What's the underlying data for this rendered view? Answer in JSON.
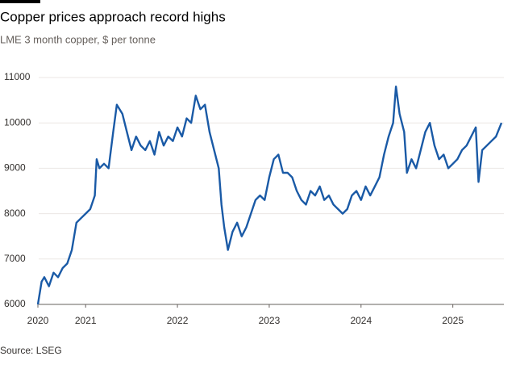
{
  "chart_data": {
    "type": "line",
    "title": "Copper prices approach record highs",
    "subtitle": "LME 3 month copper, $ per tonne",
    "source": "Source: LSEG",
    "x": [
      2020.48,
      2020.52,
      2020.55,
      2020.6,
      2020.65,
      2020.7,
      2020.75,
      2020.8,
      2020.85,
      2020.9,
      2020.95,
      2021.0,
      2021.05,
      2021.1,
      2021.12,
      2021.15,
      2021.2,
      2021.25,
      2021.3,
      2021.34,
      2021.4,
      2021.45,
      2021.5,
      2021.55,
      2021.6,
      2021.65,
      2021.7,
      2021.75,
      2021.8,
      2021.85,
      2021.9,
      2021.95,
      2022.0,
      2022.05,
      2022.1,
      2022.15,
      2022.2,
      2022.25,
      2022.3,
      2022.35,
      2022.4,
      2022.45,
      2022.48,
      2022.51,
      2022.55,
      2022.6,
      2022.65,
      2022.7,
      2022.75,
      2022.8,
      2022.85,
      2022.9,
      2022.95,
      2023.0,
      2023.05,
      2023.1,
      2023.15,
      2023.2,
      2023.25,
      2023.3,
      2023.35,
      2023.4,
      2023.45,
      2023.5,
      2023.55,
      2023.6,
      2023.65,
      2023.7,
      2023.75,
      2023.8,
      2023.85,
      2023.9,
      2023.95,
      2024.0,
      2024.05,
      2024.1,
      2024.15,
      2024.2,
      2024.25,
      2024.3,
      2024.35,
      2024.38,
      2024.42,
      2024.47,
      2024.5,
      2024.55,
      2024.6,
      2024.65,
      2024.7,
      2024.75,
      2024.8,
      2024.85,
      2024.9,
      2024.95,
      2025.0,
      2025.05,
      2025.1,
      2025.15,
      2025.2,
      2025.25,
      2025.28,
      2025.32,
      2025.37,
      2025.42,
      2025.47,
      2025.53
    ],
    "series": [
      {
        "name": "LME 3 month copper",
        "color": "#1a5aa6",
        "values": [
          6000,
          6500,
          6600,
          6400,
          6700,
          6600,
          6800,
          6900,
          7200,
          7800,
          7900,
          8000,
          8100,
          8400,
          9200,
          9000,
          9100,
          9000,
          9800,
          10400,
          10200,
          9800,
          9400,
          9700,
          9500,
          9400,
          9600,
          9300,
          9800,
          9500,
          9700,
          9600,
          9900,
          9700,
          10100,
          10000,
          10600,
          10300,
          10400,
          9800,
          9400,
          9000,
          8200,
          7700,
          7200,
          7600,
          7800,
          7500,
          7700,
          8000,
          8300,
          8400,
          8300,
          8800,
          9200,
          9300,
          8900,
          8900,
          8800,
          8500,
          8300,
          8200,
          8500,
          8400,
          8600,
          8300,
          8400,
          8200,
          8100,
          8000,
          8100,
          8400,
          8500,
          8300,
          8600,
          8400,
          8600,
          8800,
          9300,
          9700,
          10000,
          10800,
          10200,
          9800,
          8900,
          9200,
          9000,
          9400,
          9800,
          10000,
          9500,
          9200,
          9300,
          9000,
          9100,
          9200,
          9400,
          9500,
          9700,
          9900,
          8700,
          9400,
          9500,
          9600,
          9700,
          10000
        ]
      }
    ],
    "xlim": [
      2020.48,
      2025.53
    ],
    "xticks": [
      {
        "value": 2020.48,
        "label": "2020"
      },
      2021,
      2022,
      2023,
      2024,
      2025
    ],
    "ylim": [
      6000,
      11000
    ],
    "yticks": [
      6000,
      7000,
      8000,
      9000,
      10000,
      11000
    ],
    "grid": true
  }
}
